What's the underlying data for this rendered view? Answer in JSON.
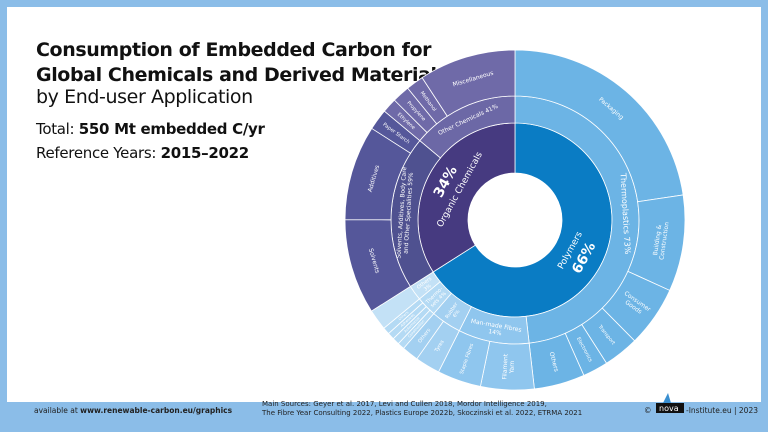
{
  "header": {
    "title_line1": "Consumption of Embedded Carbon for",
    "title_line2": "Global Chemicals and Derived Materials",
    "subtitle": "by End-user Application",
    "total_label": "Total:",
    "total_value": "550 Mt embedded C/yr",
    "years_label": "Reference Years:",
    "years_value": "2015–2022"
  },
  "footer": {
    "available_prefix": "available at",
    "available_url": "www.renewable-carbon.eu/graphics",
    "sources_line1": "Main Sources: Geyer et al. 2017, Levi and Cullen 2018, Mordor Intelligence 2019,",
    "sources_line2": "The Fibre Year Consulting 2022, Plastics Europe 2022b, Skoczinski et al. 2022, ETRMA 2021",
    "copyright": "©",
    "logo_text": "nova",
    "institute": "-Institute.eu | 2023"
  },
  "chart_data": {
    "type": "sunburst",
    "title": "Consumption of Embedded Carbon for Global Chemicals and Derived Materials by End-user Application",
    "unit": "% of embedded carbon",
    "rings": [
      {
        "label": "Polymers",
        "pct_text": "66%",
        "value": 66,
        "color": "#0a7cc4",
        "children": [
          {
            "label": "Thermoplastics 73%",
            "value": 73,
            "color": "#6cb4e5",
            "children": [
              {
                "label": "Packaging",
                "value": 0.47
              },
              {
                "label": "Building & Construction",
                "value": 0.19
              },
              {
                "label": "Consumer Goods",
                "value": 0.12
              },
              {
                "label": "Transport",
                "value": 0.07
              },
              {
                "label": "Electronics",
                "value": 0.05
              },
              {
                "label": "Others",
                "value": 0.1
              }
            ]
          },
          {
            "label": "Man-made Fibres 14%",
            "value": 14,
            "color": "#8fc6ee",
            "children": [
              {
                "label": "Filament Yarn",
                "value": 0.55
              },
              {
                "label": "Staple Fibres",
                "value": 0.45
              }
            ]
          },
          {
            "label": "Rubber 6%",
            "value": 6,
            "color": "#a3d0f1",
            "children": [
              {
                "label": "Tyres",
                "value": 0.6
              },
              {
                "label": "Others",
                "value": 0.4
              }
            ]
          },
          {
            "label": "Thermo-sets 4%",
            "value": 4,
            "color": "#b4daf4",
            "children": [
              {
                "label": "Construction",
                "value": 0.25
              },
              {
                "label": "Automotive",
                "value": 0.25
              },
              {
                "label": "Adhesives",
                "value": 0.25
              },
              {
                "label": "Others",
                "value": 0.25
              }
            ]
          },
          {
            "label": "Others 3%",
            "value": 3,
            "color": "#c3e1f6",
            "children": [
              {
                "label": "",
                "value": 1
              }
            ]
          }
        ]
      },
      {
        "label": "Organic Chemicals",
        "pct_text": "34%",
        "value": 34,
        "color": "#463a80",
        "children": [
          {
            "label": "Solvents, Additives, Body Care and Other Specialities 59%",
            "value": 59,
            "color": "#4f5190",
            "children": [
              {
                "label": "Solvents",
                "value": 0.45
              },
              {
                "label": "Additives",
                "value": 0.45
              },
              {
                "label": "Paper Starch",
                "value": 0.1
              }
            ]
          },
          {
            "label": "Other Chemicals 41%",
            "value": 41,
            "color": "#6c68a6",
            "children": [
              {
                "label": "Ethylene",
                "value": 0.1
              },
              {
                "label": "Propylene",
                "value": 0.12
              },
              {
                "label": "Methanol",
                "value": 0.12
              },
              {
                "label": "Miscellaneous",
                "value": 0.66
              }
            ]
          }
        ]
      }
    ]
  }
}
